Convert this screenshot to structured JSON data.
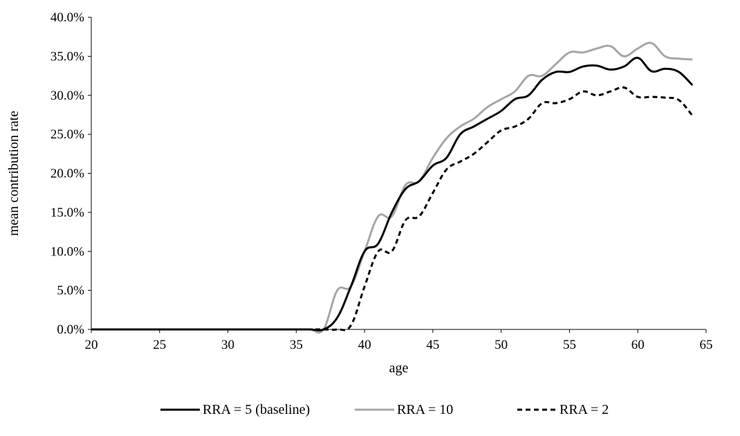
{
  "chart_data": {
    "type": "line",
    "title": "",
    "xlabel": "age",
    "ylabel": "mean contribution rate",
    "xlim": [
      20,
      65
    ],
    "ylim": [
      0,
      0.4
    ],
    "x_ticks": [
      20,
      25,
      30,
      35,
      40,
      45,
      50,
      55,
      60,
      65
    ],
    "x_tick_labels": [
      "20",
      "25",
      "30",
      "35",
      "40",
      "45",
      "50",
      "55",
      "60",
      "65"
    ],
    "y_ticks": [
      0,
      0.05,
      0.1,
      0.15,
      0.2,
      0.25,
      0.3,
      0.35,
      0.4
    ],
    "y_tick_labels": [
      "0.0%",
      "5.0%",
      "10.0%",
      "15.0%",
      "20.0%",
      "25.0%",
      "30.0%",
      "35.0%",
      "40.0%"
    ],
    "grid": false,
    "legend_position": "bottom",
    "series": [
      {
        "name": "RRA = 5 (baseline)",
        "color": "#000000",
        "dash": "solid",
        "x": [
          20,
          21,
          22,
          23,
          24,
          25,
          26,
          27,
          28,
          29,
          30,
          31,
          32,
          33,
          34,
          35,
          36,
          37,
          38,
          39,
          40,
          41,
          42,
          43,
          44,
          45,
          46,
          47,
          48,
          49,
          50,
          51,
          52,
          53,
          54,
          55,
          56,
          57,
          58,
          59,
          60,
          61,
          62,
          63,
          64
        ],
        "values": [
          0,
          0,
          0,
          0,
          0,
          0,
          0,
          0,
          0,
          0,
          0,
          0,
          0,
          0,
          0,
          0,
          0,
          0,
          0.015,
          0.055,
          0.1,
          0.11,
          0.15,
          0.18,
          0.19,
          0.21,
          0.22,
          0.25,
          0.26,
          0.27,
          0.28,
          0.295,
          0.3,
          0.32,
          0.33,
          0.33,
          0.337,
          0.338,
          0.333,
          0.337,
          0.348,
          0.331,
          0.334,
          0.33,
          0.313
        ]
      },
      {
        "name": "RRA = 10",
        "color": "#a6a6a6",
        "dash": "solid",
        "x": [
          20,
          21,
          22,
          23,
          24,
          25,
          26,
          27,
          28,
          29,
          30,
          31,
          32,
          33,
          34,
          35,
          36,
          37,
          38,
          39,
          40,
          41,
          42,
          43,
          44,
          45,
          46,
          47,
          48,
          49,
          50,
          51,
          52,
          53,
          54,
          55,
          56,
          57,
          58,
          59,
          60,
          61,
          62,
          63,
          64
        ],
        "values": [
          0,
          0,
          0,
          0,
          0,
          0,
          0,
          0,
          0,
          0,
          0,
          0,
          0,
          0,
          0,
          0,
          0,
          0,
          0.05,
          0.055,
          0.1,
          0.145,
          0.145,
          0.185,
          0.19,
          0.22,
          0.245,
          0.26,
          0.27,
          0.285,
          0.295,
          0.305,
          0.325,
          0.325,
          0.34,
          0.355,
          0.355,
          0.36,
          0.363,
          0.35,
          0.36,
          0.367,
          0.35,
          0.347,
          0.346
        ]
      },
      {
        "name": "RRA = 2",
        "color": "#000000",
        "dash": "dashed",
        "x": [
          20,
          21,
          22,
          23,
          24,
          25,
          26,
          27,
          28,
          29,
          30,
          31,
          32,
          33,
          34,
          35,
          36,
          37,
          38,
          39,
          40,
          41,
          42,
          43,
          44,
          45,
          46,
          47,
          48,
          49,
          50,
          51,
          52,
          53,
          54,
          55,
          56,
          57,
          58,
          59,
          60,
          61,
          62,
          63,
          64
        ],
        "values": [
          0,
          0,
          0,
          0,
          0,
          0,
          0,
          0,
          0,
          0,
          0,
          0,
          0,
          0,
          0,
          0,
          0,
          0,
          0,
          0.005,
          0.055,
          0.1,
          0.1,
          0.14,
          0.145,
          0.175,
          0.205,
          0.215,
          0.225,
          0.24,
          0.255,
          0.26,
          0.27,
          0.29,
          0.29,
          0.295,
          0.305,
          0.3,
          0.305,
          0.31,
          0.298,
          0.298,
          0.297,
          0.294,
          0.274
        ]
      }
    ]
  }
}
